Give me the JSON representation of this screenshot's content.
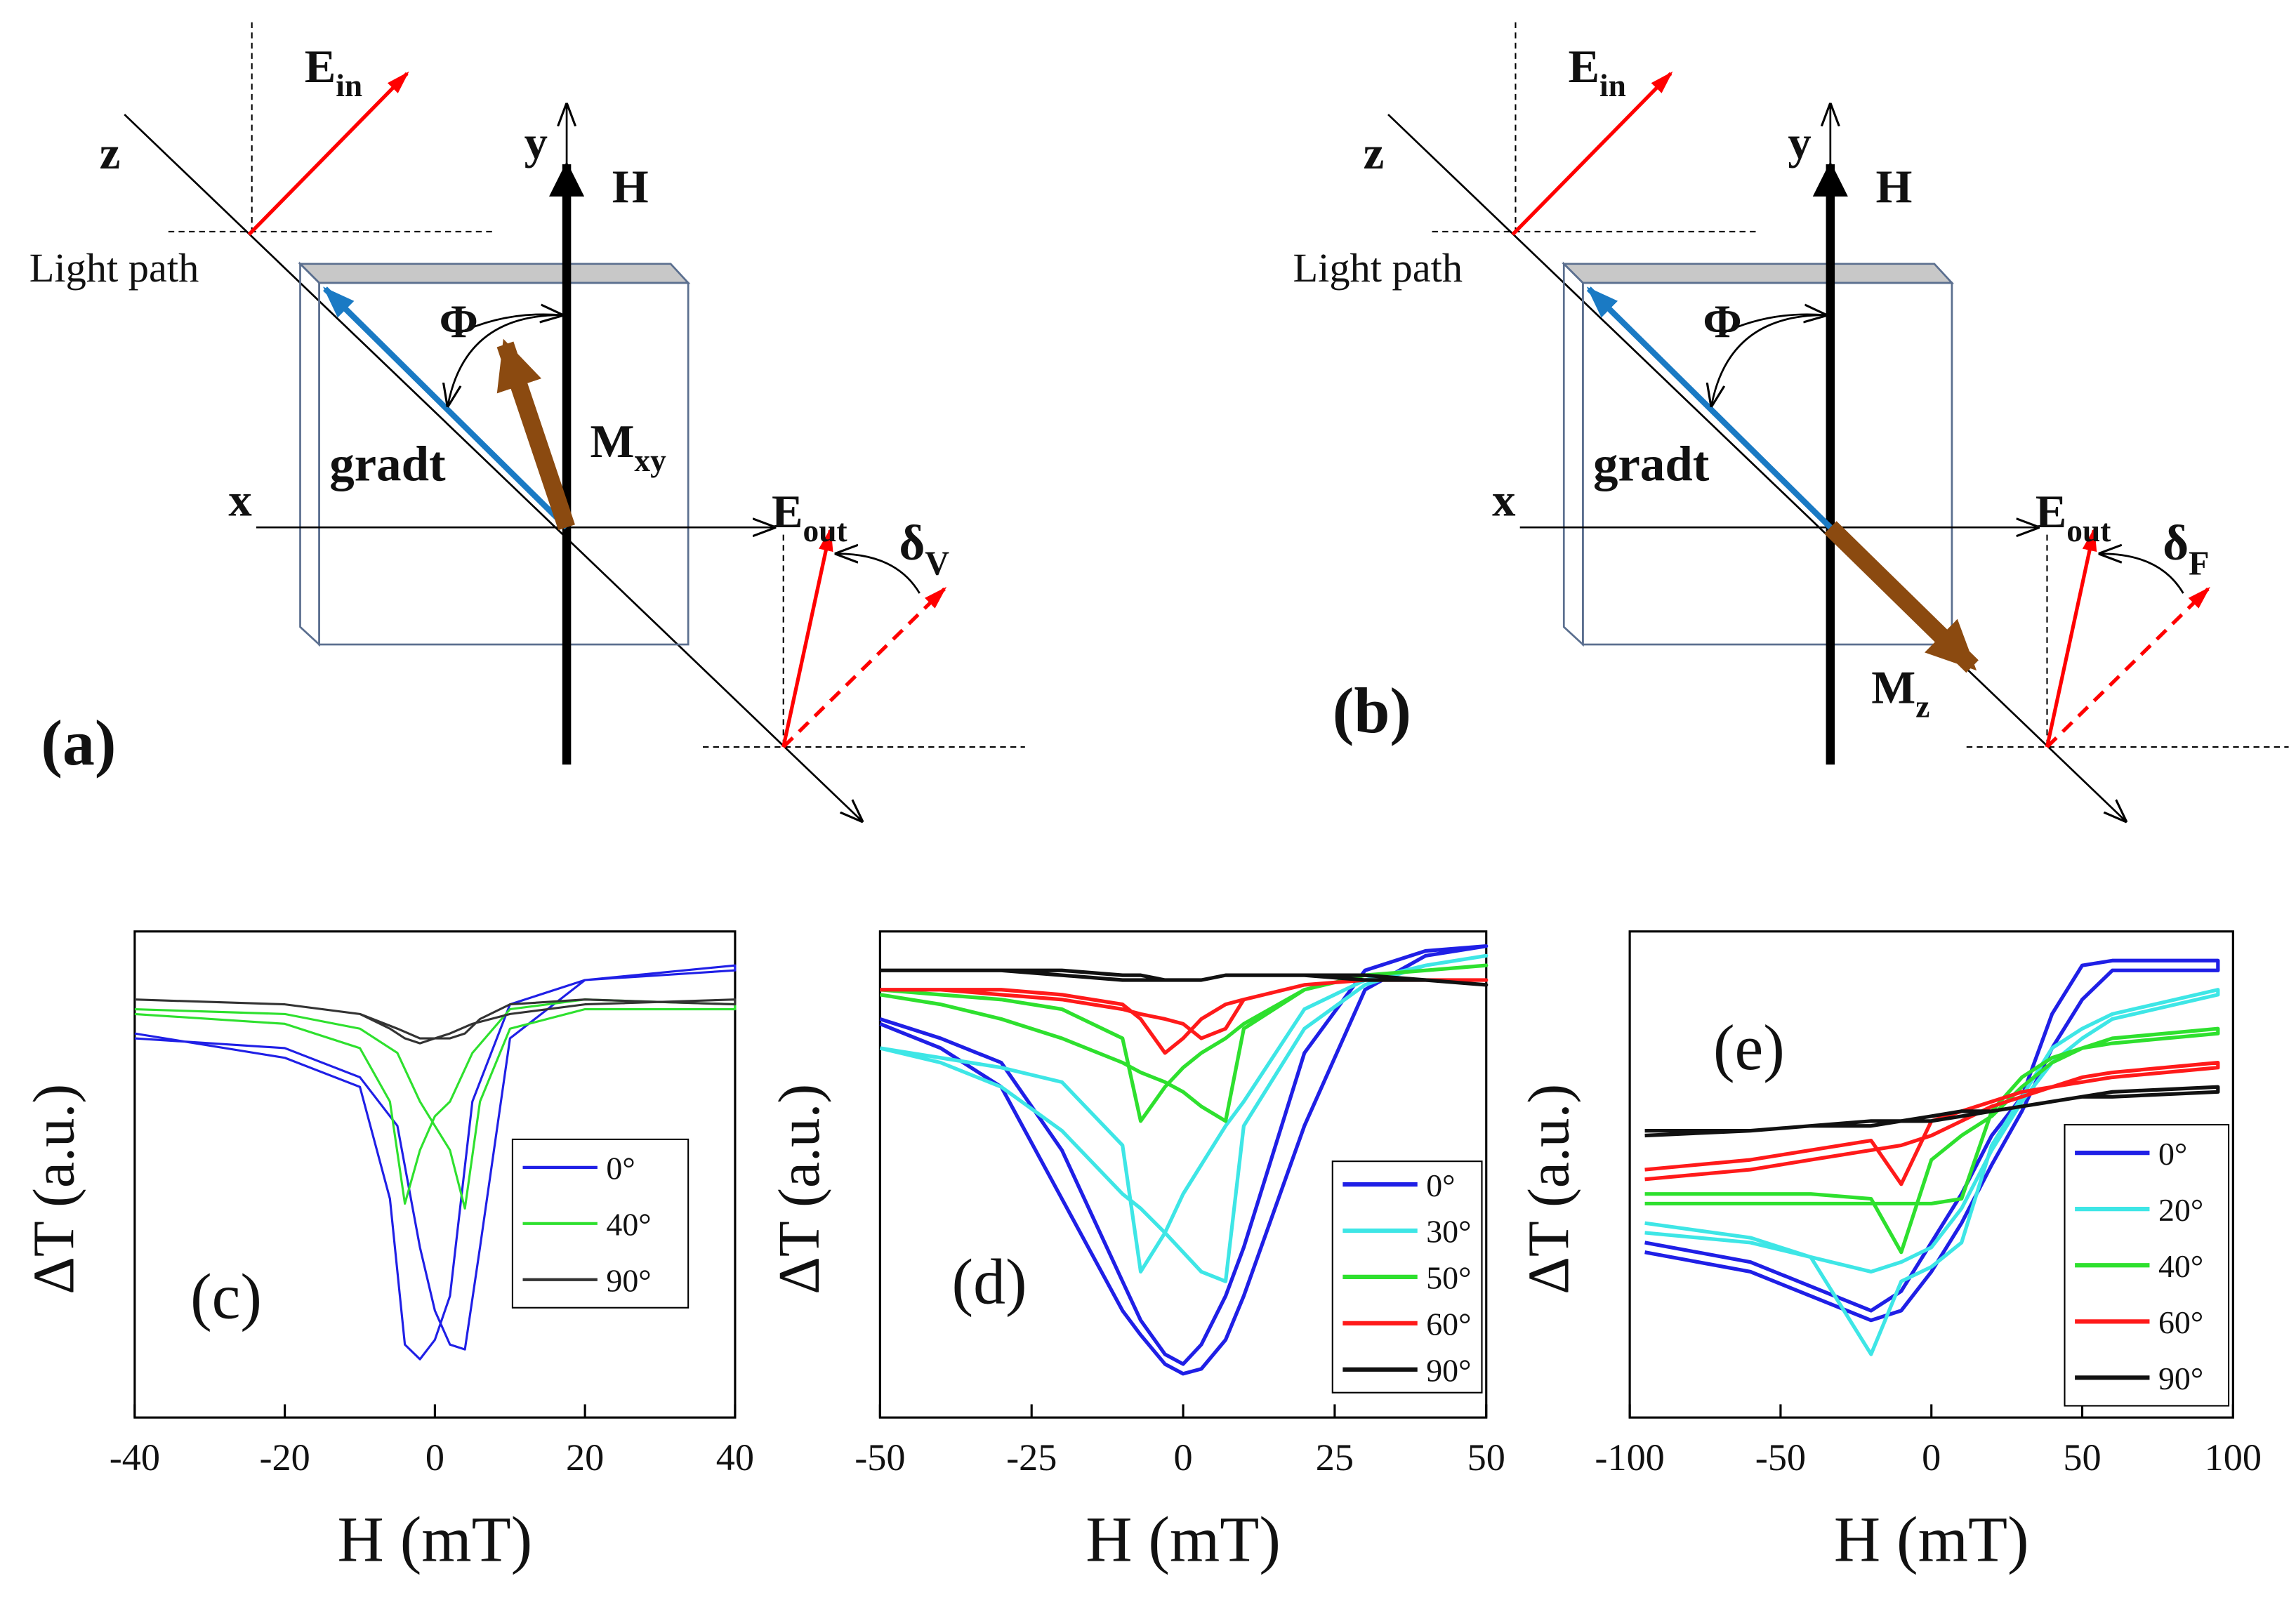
{
  "diagrams": [
    {
      "label": "(a)",
      "axes": {
        "z": "z",
        "y": "y",
        "x": "x"
      },
      "field": "H",
      "light_path": "Light path",
      "e_in": {
        "base": "E",
        "sub": "in"
      },
      "e_out": {
        "base": "E",
        "sub": "out"
      },
      "angle": "Φ",
      "gradient": "gradt",
      "magnetization": {
        "base": "M",
        "sub": "xy"
      },
      "rotation": {
        "base": "δ",
        "sub": "V"
      }
    },
    {
      "label": "(b)",
      "axes": {
        "z": "z",
        "y": "y",
        "x": "x"
      },
      "field": "H",
      "light_path": "Light path",
      "e_in": {
        "base": "E",
        "sub": "in"
      },
      "e_out": {
        "base": "E",
        "sub": "out"
      },
      "angle": "Φ",
      "gradient": "gradt",
      "magnetization": {
        "base": "M",
        "sub": "z"
      },
      "rotation": {
        "base": "δ",
        "sub": "F"
      }
    }
  ],
  "chart_data": [
    {
      "type": "line",
      "panel": "(c)",
      "xlabel": "H (mT)",
      "ylabel": "ΔT (a.u.)",
      "xlim": [
        -40,
        40
      ],
      "xticks": [
        -40,
        -20,
        0,
        20,
        40
      ],
      "ylim": [
        0,
        10
      ],
      "x": [
        -40,
        -20,
        -10,
        -5,
        -2,
        0,
        2,
        4,
        6,
        10,
        20,
        40,
        40,
        20,
        10,
        5,
        2,
        0,
        -2,
        -4,
        -6,
        -10,
        -20,
        -40
      ],
      "series": [
        {
          "name": "0°",
          "color": "#1f1fe6",
          "values": [
            7.8,
            7.6,
            7.0,
            6.0,
            3.5,
            2.2,
            1.5,
            1.4,
            3.5,
            7.8,
            9.0,
            9.2,
            9.3,
            9.0,
            8.5,
            6.5,
            2.5,
            1.6,
            1.2,
            1.5,
            4.5,
            6.8,
            7.4,
            7.9
          ]
        },
        {
          "name": "40°",
          "color": "#2ee02e",
          "values": [
            8.4,
            8.3,
            8.0,
            7.5,
            6.5,
            6.0,
            5.5,
            4.3,
            6.5,
            8.0,
            8.4,
            8.4,
            8.5,
            8.6,
            8.4,
            7.5,
            6.5,
            6.2,
            5.5,
            4.4,
            6.5,
            7.6,
            8.1,
            8.3
          ]
        },
        {
          "name": "90°",
          "color": "#333333",
          "values": [
            8.6,
            8.5,
            8.3,
            8.0,
            7.8,
            7.8,
            7.8,
            7.9,
            8.2,
            8.5,
            8.6,
            8.5,
            8.6,
            8.5,
            8.3,
            8.1,
            7.9,
            7.8,
            7.7,
            7.8,
            8.0,
            8.3,
            8.5,
            8.6
          ]
        }
      ]
    },
    {
      "type": "line",
      "panel": "(d)",
      "xlabel": "H (mT)",
      "ylabel": "ΔT (a.u.)",
      "xlim": [
        -50,
        50
      ],
      "xticks": [
        -50,
        -25,
        0,
        25,
        50
      ],
      "ylim": [
        0,
        10
      ],
      "x": [
        -50,
        -40,
        -30,
        -20,
        -10,
        -7,
        -3,
        0,
        3,
        7,
        10,
        20,
        30,
        40,
        50,
        50,
        40,
        30,
        20,
        10,
        7,
        3,
        0,
        -3,
        -7,
        -10,
        -20,
        -30,
        -40,
        -50
      ],
      "series": [
        {
          "name": "0°",
          "color": "#1f1fe6",
          "values": [
            8.1,
            7.6,
            6.8,
            4.5,
            2.2,
            1.7,
            1.1,
            0.9,
            1.0,
            1.6,
            2.5,
            6.0,
            8.8,
            9.5,
            9.7,
            9.7,
            9.6,
            9.2,
            7.5,
            3.5,
            2.5,
            1.5,
            1.1,
            1.3,
            2.0,
            2.8,
            5.5,
            7.3,
            7.8,
            8.2
          ]
        },
        {
          "name": "30°",
          "color": "#3ee6e6",
          "values": [
            7.6,
            7.3,
            6.8,
            5.9,
            4.6,
            4.3,
            3.8,
            3.4,
            3.0,
            2.8,
            6.0,
            8.0,
            8.9,
            9.3,
            9.5,
            9.5,
            9.3,
            9.0,
            8.4,
            6.5,
            6.0,
            5.2,
            4.6,
            3.8,
            3.0,
            5.6,
            6.9,
            7.2,
            7.4,
            7.6
          ]
        },
        {
          "name": "50°",
          "color": "#2ee02e",
          "values": [
            8.7,
            8.5,
            8.2,
            7.8,
            7.3,
            7.1,
            6.9,
            6.7,
            6.4,
            6.1,
            8.0,
            8.8,
            9.1,
            9.2,
            9.3,
            9.3,
            9.2,
            9.1,
            8.8,
            8.1,
            7.8,
            7.5,
            7.2,
            6.8,
            6.1,
            7.8,
            8.4,
            8.6,
            8.7,
            8.8
          ]
        },
        {
          "name": "60°",
          "color": "#ff1a1a",
          "values": [
            8.8,
            8.8,
            8.7,
            8.6,
            8.4,
            8.3,
            8.2,
            8.1,
            7.8,
            8.0,
            8.6,
            8.9,
            9.0,
            9.0,
            9.0,
            9.0,
            9.0,
            9.0,
            8.9,
            8.6,
            8.5,
            8.2,
            7.8,
            7.5,
            8.2,
            8.5,
            8.7,
            8.8,
            8.8,
            8.8
          ]
        },
        {
          "name": "90°",
          "color": "#111111",
          "values": [
            9.2,
            9.2,
            9.2,
            9.1,
            9.0,
            9.0,
            9.0,
            9.0,
            9.0,
            9.1,
            9.1,
            9.1,
            9.0,
            9.0,
            8.9,
            8.9,
            9.0,
            9.1,
            9.1,
            9.1,
            9.1,
            9.0,
            9.0,
            9.0,
            9.1,
            9.1,
            9.2,
            9.2,
            9.2,
            9.2
          ]
        }
      ]
    },
    {
      "type": "line",
      "panel": "(e)",
      "xlabel": "H (mT)",
      "ylabel": "ΔT (a.u.)",
      "xlim": [
        -100,
        100
      ],
      "xticks": [
        -100,
        -50,
        0,
        50,
        100
      ],
      "ylim": [
        0,
        10
      ],
      "x": [
        -95,
        -60,
        -40,
        -20,
        -10,
        0,
        10,
        20,
        30,
        40,
        50,
        60,
        95,
        95,
        60,
        50,
        40,
        30,
        20,
        10,
        0,
        -10,
        -20,
        -40,
        -60,
        -95
      ],
      "series": [
        {
          "name": "0°",
          "color": "#1f1fe6",
          "values": [
            3.4,
            3.0,
            2.5,
            2.0,
            2.2,
            3.0,
            4.0,
            5.2,
            6.3,
            7.6,
            8.6,
            9.2,
            9.2,
            9.4,
            9.4,
            9.3,
            8.3,
            6.6,
            5.8,
            4.6,
            3.6,
            2.6,
            2.2,
            2.7,
            3.2,
            3.6
          ]
        },
        {
          "name": "20°",
          "color": "#3ee6e6",
          "values": [
            3.8,
            3.6,
            3.3,
            3.0,
            3.2,
            3.5,
            4.3,
            5.5,
            6.5,
            7.3,
            7.8,
            8.2,
            8.7,
            8.8,
            8.3,
            8.0,
            7.6,
            6.6,
            5.6,
            3.6,
            3.1,
            2.8,
            1.3,
            3.3,
            3.7,
            4.0
          ]
        },
        {
          "name": "40°",
          "color": "#2ee02e",
          "values": [
            4.4,
            4.4,
            4.4,
            4.4,
            4.4,
            4.4,
            4.5,
            6.3,
            7.0,
            7.4,
            7.6,
            7.7,
            7.9,
            8.0,
            7.8,
            7.6,
            7.3,
            6.8,
            6.2,
            5.8,
            5.3,
            3.4,
            4.5,
            4.6,
            4.6,
            4.6
          ]
        },
        {
          "name": "60°",
          "color": "#ff1a1a",
          "values": [
            4.9,
            5.1,
            5.3,
            5.5,
            5.6,
            5.8,
            6.1,
            6.4,
            6.6,
            6.8,
            6.9,
            7.0,
            7.2,
            7.3,
            7.1,
            7.0,
            6.8,
            6.7,
            6.5,
            6.3,
            6.1,
            4.8,
            5.7,
            5.5,
            5.3,
            5.1
          ]
        },
        {
          "name": "90°",
          "color": "#111111",
          "values": [
            5.8,
            5.9,
            6.0,
            6.0,
            6.1,
            6.1,
            6.2,
            6.3,
            6.4,
            6.5,
            6.6,
            6.6,
            6.7,
            6.8,
            6.7,
            6.6,
            6.5,
            6.4,
            6.3,
            6.3,
            6.2,
            6.1,
            6.1,
            6.0,
            5.9,
            5.9
          ]
        }
      ]
    }
  ]
}
